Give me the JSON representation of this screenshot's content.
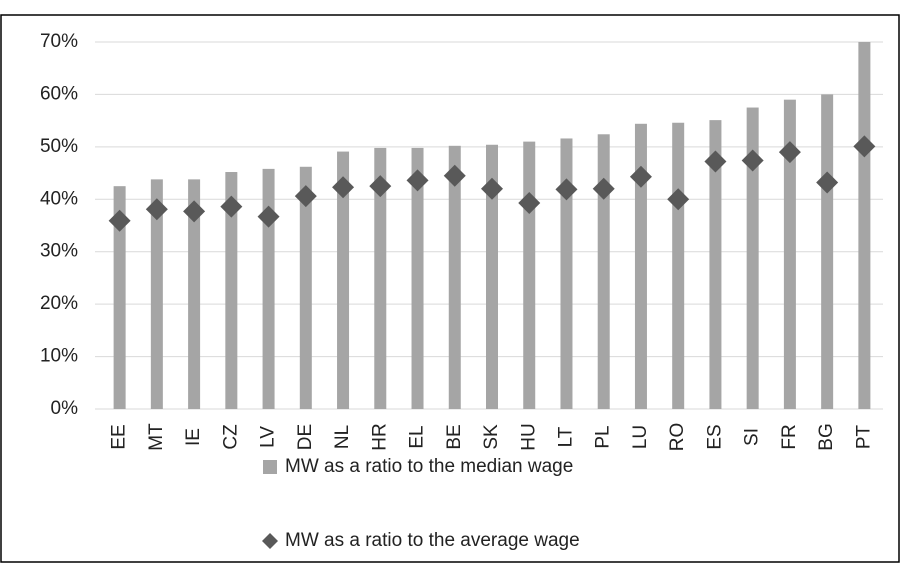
{
  "chart_data": {
    "type": "bar",
    "categories": [
      "EE",
      "MT",
      "IE",
      "CZ",
      "LV",
      "DE",
      "NL",
      "HR",
      "EL",
      "BE",
      "SK",
      "HU",
      "LT",
      "PL",
      "LU",
      "RO",
      "ES",
      "SI",
      "FR",
      "BG",
      "PT"
    ],
    "series": [
      {
        "name": "MW as a ratio to the median wage",
        "color": "#a5a5a5",
        "marker": "bar",
        "values": [
          42.5,
          43.8,
          43.8,
          45.2,
          45.8,
          46.2,
          49.1,
          49.8,
          49.8,
          50.2,
          50.4,
          51.0,
          51.6,
          52.4,
          54.4,
          54.6,
          55.1,
          57.5,
          59.0,
          60.0,
          70.0
        ]
      },
      {
        "name": "MW as a ratio to the average wage",
        "color": "#595959",
        "marker": "diamond",
        "values": [
          35.9,
          38.1,
          37.7,
          38.6,
          36.7,
          40.6,
          42.3,
          42.5,
          43.6,
          44.5,
          42.0,
          39.3,
          41.9,
          42.0,
          44.3,
          40.0,
          47.2,
          47.4,
          49.0,
          43.2,
          50.1
        ]
      }
    ],
    "ylim": [
      0,
      70
    ],
    "yticks": [
      {
        "value": 0,
        "label": "0%"
      },
      {
        "value": 10,
        "label": "10%"
      },
      {
        "value": 20,
        "label": "20%"
      },
      {
        "value": 30,
        "label": "30%"
      },
      {
        "value": 40,
        "label": "40%"
      },
      {
        "value": 50,
        "label": "50%"
      },
      {
        "value": 60,
        "label": "60%"
      },
      {
        "value": 70,
        "label": "70%"
      }
    ],
    "grid": true,
    "legend": "bottom"
  }
}
